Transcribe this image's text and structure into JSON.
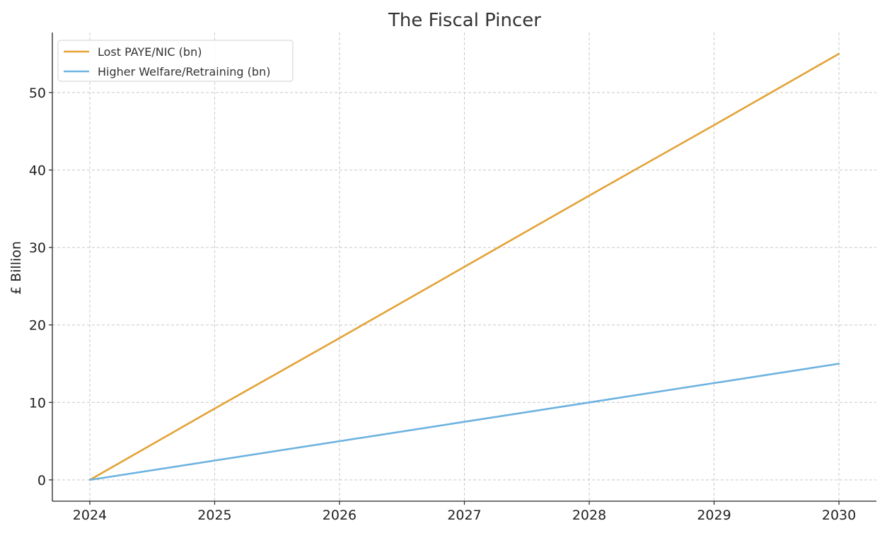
{
  "chart_data": {
    "type": "line",
    "title": "The Fiscal Pincer",
    "xlabel": "",
    "ylabel": "£ Billion",
    "x": [
      2024,
      2025,
      2026,
      2027,
      2028,
      2029,
      2030
    ],
    "x_ticks": [
      "2024",
      "2025",
      "2026",
      "2027",
      "2028",
      "2029",
      "2030"
    ],
    "y_ticks": [
      "0",
      "10",
      "20",
      "30",
      "40",
      "50"
    ],
    "xlim": [
      2023.7,
      2030.3
    ],
    "ylim": [
      -2.75,
      57.75
    ],
    "grid": true,
    "legend_position": "top-left",
    "series": [
      {
        "name": "Lost PAYE/NIC (bn)",
        "color": "#E3A236",
        "values": [
          0,
          9.2,
          18.3,
          27.5,
          36.7,
          45.8,
          55
        ]
      },
      {
        "name": "Higher Welfare/Retraining (bn)",
        "color": "#6CB2E0",
        "values": [
          0,
          2.5,
          5,
          7.5,
          10,
          12.5,
          15
        ]
      }
    ]
  }
}
